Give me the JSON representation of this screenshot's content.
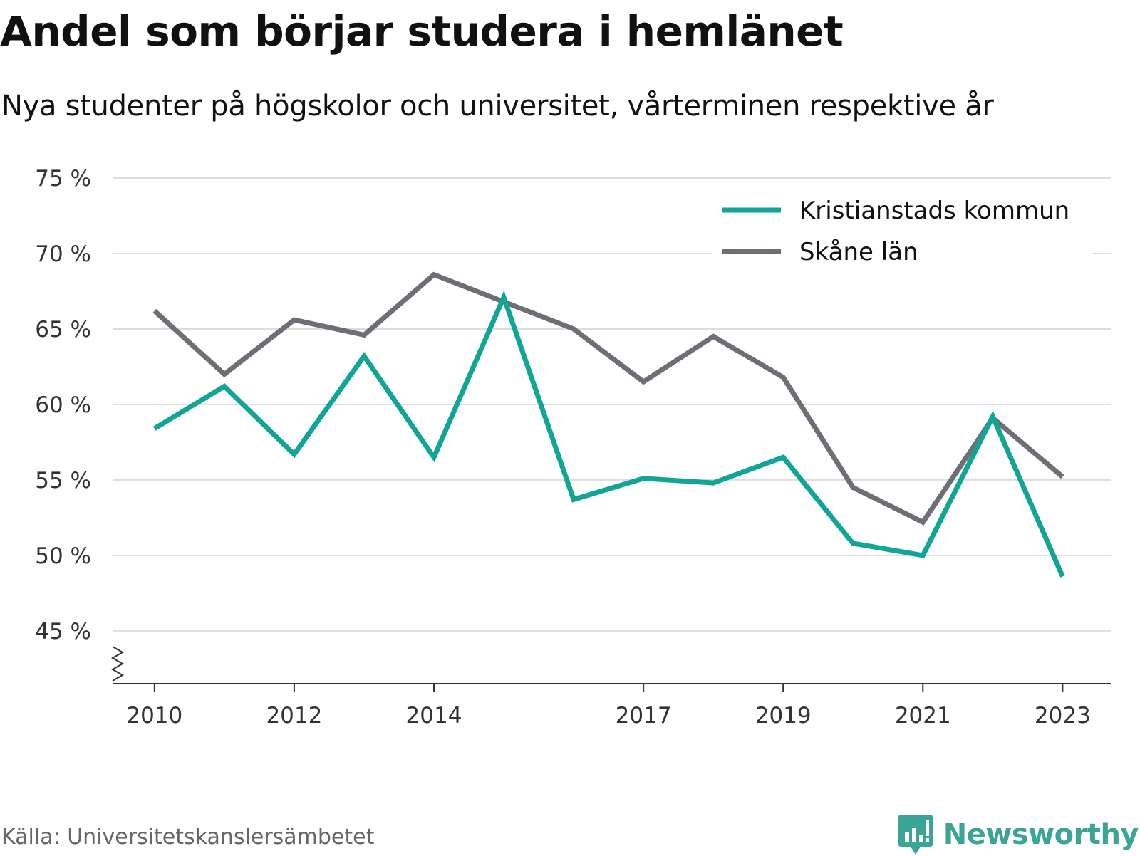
{
  "header": {
    "title": "Andel som börjar studera i hemlänet",
    "subtitle": "Nya studenter på högskolor och universitet, vårterminen respektive år"
  },
  "footer": {
    "source": "Källa: Universitetskanslersämbetet",
    "brand": "Newsworthy",
    "brand_icon": "newsworthy-logo-icon"
  },
  "chart_data": {
    "type": "line",
    "x": [
      2010,
      2011,
      2012,
      2013,
      2014,
      2015,
      2016,
      2017,
      2018,
      2019,
      2020,
      2021,
      2022,
      2023
    ],
    "x_tick_labels": [
      "2010",
      "2012",
      "2014",
      "2017",
      "2019",
      "2021",
      "2023"
    ],
    "x_tick_values": [
      2010,
      2012,
      2014,
      2017,
      2019,
      2021,
      2023
    ],
    "y_ticks": [
      45,
      50,
      55,
      60,
      65,
      70,
      75
    ],
    "y_tick_labels": [
      "45 %",
      "50 %",
      "55 %",
      "60 %",
      "65 %",
      "70 %",
      "75 %"
    ],
    "ylim": [
      41.5,
      75
    ],
    "xlim": [
      2009.4,
      2023.7
    ],
    "grid": true,
    "axis_break": true,
    "legend_position": "top-right",
    "series": [
      {
        "name": "Kristianstads kommun",
        "color": "#10a597",
        "values": [
          58.4,
          61.2,
          56.7,
          63.2,
          56.5,
          67.1,
          53.7,
          55.1,
          54.8,
          56.5,
          50.8,
          50.0,
          59.2,
          48.6
        ]
      },
      {
        "name": "Skåne län",
        "color": "#6f6e74",
        "values": [
          66.2,
          62.0,
          65.6,
          64.6,
          68.6,
          66.8,
          65.0,
          61.5,
          64.5,
          61.8,
          54.5,
          52.2,
          59.1,
          55.2
        ]
      }
    ]
  }
}
